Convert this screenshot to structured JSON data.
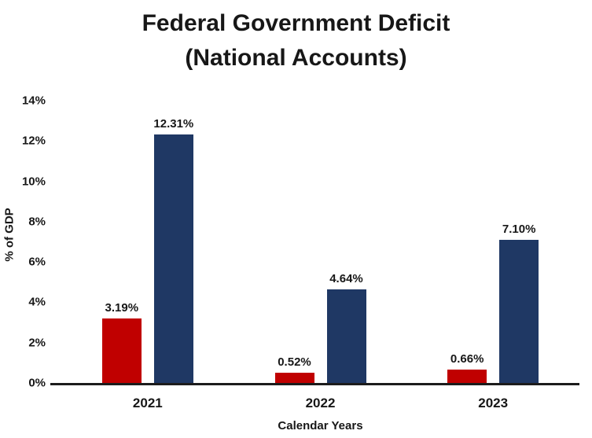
{
  "title": {
    "line1": "Federal Government Deficit",
    "line2": "(National Accounts)"
  },
  "axes": {
    "y_label": "% of GDP",
    "x_label": "Calendar Years"
  },
  "chart_data": {
    "type": "bar",
    "title": "Federal Government Deficit (National Accounts)",
    "categories": [
      "2021",
      "2022",
      "2023"
    ],
    "series": [
      {
        "name": "deficit-red-series",
        "color": "#C00000",
        "values": [
          3.19,
          0.52,
          0.66
        ],
        "labels": [
          "3.19%",
          "0.52%",
          "0.66%"
        ]
      },
      {
        "name": "deficit-navy-series",
        "color": "#1F3864",
        "values": [
          12.31,
          4.64,
          7.1
        ],
        "labels": [
          "12.31%",
          "4.64%",
          "7.10%"
        ]
      }
    ],
    "xlabel": "Calendar Years",
    "ylabel": "% of GDP",
    "ylim": [
      0,
      14
    ],
    "yticks": {
      "values": [
        0,
        2,
        4,
        6,
        8,
        10,
        12,
        14
      ],
      "labels": [
        "0%",
        "2%",
        "4%",
        "6%",
        "8%",
        "10%",
        "12%",
        "14%"
      ]
    },
    "grid": false,
    "legend": "none"
  }
}
